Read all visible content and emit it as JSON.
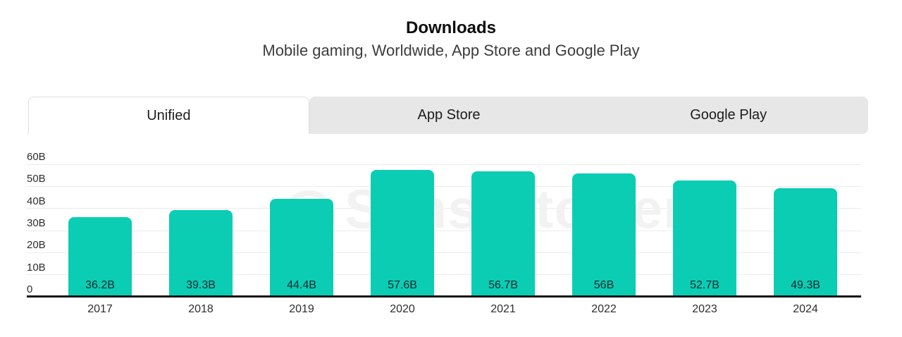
{
  "header": {
    "title": "Downloads",
    "subtitle": "Mobile gaming, Worldwide, App Store and Google Play"
  },
  "tabs": [
    {
      "label": "Unified",
      "active": true
    },
    {
      "label": "App Store",
      "active": false
    },
    {
      "label": "Google Play",
      "active": false
    }
  ],
  "watermark": {
    "text": "Sensortower"
  },
  "colors": {
    "bar": "#0acdb4",
    "inactive_tab": "#e7e7e7",
    "axis": "#141414",
    "gridline": "#ececec",
    "watermark": "#f2f2f2"
  },
  "chart_data": {
    "type": "bar",
    "title": "Downloads",
    "subtitle": "Mobile gaming, Worldwide, App Store and Google Play",
    "categories": [
      "2017",
      "2018",
      "2019",
      "2020",
      "2021",
      "2022",
      "2023",
      "2024"
    ],
    "values": [
      36.2,
      39.3,
      44.4,
      57.6,
      56.7,
      56,
      52.7,
      49.3
    ],
    "value_labels": [
      "36.2B",
      "39.3B",
      "44.4B",
      "57.6B",
      "56.7B",
      "56B",
      "52.7B",
      "49.3B"
    ],
    "unit": "B",
    "y_ticks": [
      {
        "value": 60,
        "label": "60B"
      },
      {
        "value": 50,
        "label": "50B"
      },
      {
        "value": 40,
        "label": "40B"
      },
      {
        "value": 30,
        "label": "30B"
      },
      {
        "value": 20,
        "label": "20B"
      },
      {
        "value": 10,
        "label": "10B"
      },
      {
        "value": 0,
        "label": "0"
      }
    ],
    "ylim": [
      0,
      60
    ],
    "grid": true,
    "legend": false,
    "bar_color": "#0acdb4"
  }
}
